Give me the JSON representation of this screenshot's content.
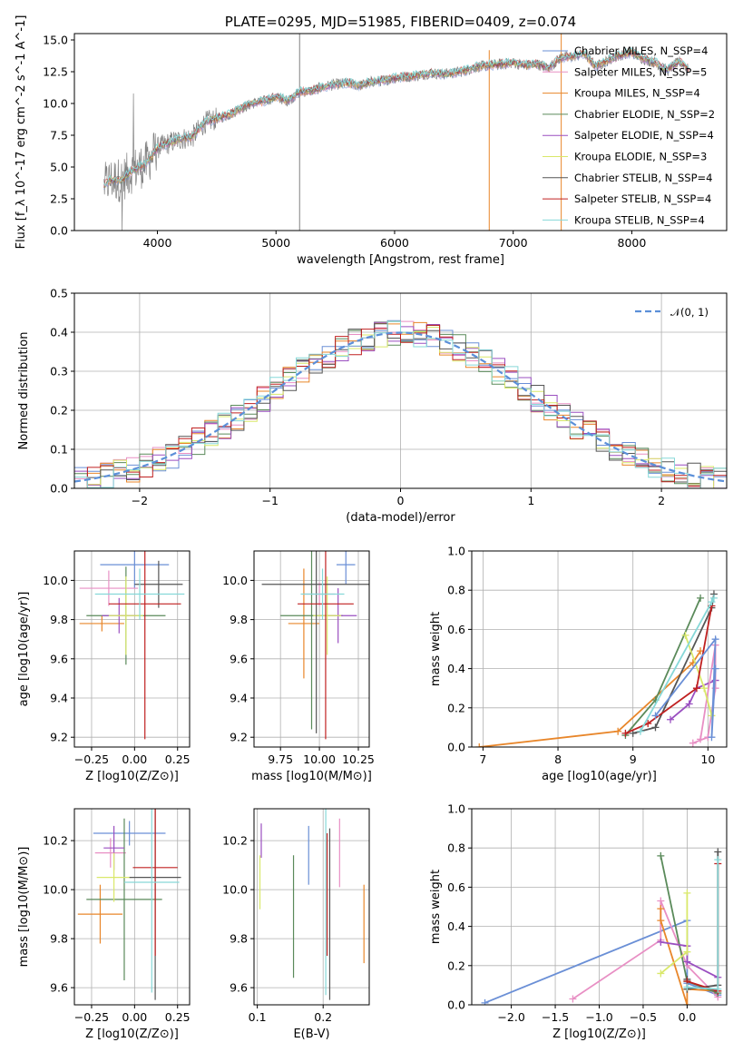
{
  "colors": {
    "chabrier_miles": "#6a8fd6",
    "salpeter_miles": "#e88fc4",
    "kroupa_miles": "#e8862a",
    "chabrier_elodie": "#5a8a5a",
    "salpeter_elodie": "#9a4fc0",
    "kroupa_elodie": "#d9e86a",
    "chabrier_stelib": "#555555",
    "salpeter_stelib": "#c02020",
    "kroupa_stelib": "#86d8d8",
    "normal_line": "#5b8fd8",
    "observed": "#808080"
  },
  "chart_data": [
    {
      "id": "spectrum",
      "type": "line",
      "title": "PLATE=0295, MJD=51985, FIBERID=0409, z=0.074",
      "xlabel": "wavelength [Angstrom, rest frame]",
      "ylabel": "Flux [f_λ 10^-17 erg cm^-2 s^-1 A^-1]",
      "xlim": [
        3300,
        8800
      ],
      "ylim": [
        0,
        15.5
      ],
      "xticks": [
        4000,
        5000,
        6000,
        7000,
        8000
      ],
      "yticks": [
        0.0,
        2.5,
        5.0,
        7.5,
        10.0,
        12.5,
        15.0
      ],
      "grid": false,
      "legend_position": "top-right",
      "continuum_x": [
        3550,
        3600,
        3700,
        3800,
        3900,
        4000,
        4100,
        4200,
        4300,
        4400,
        4500,
        4600,
        4700,
        4800,
        4900,
        5000,
        5100,
        5200,
        5300,
        5400,
        5500,
        5600,
        5700,
        5800,
        5900,
        6000,
        6100,
        6200,
        6300,
        6400,
        6500,
        6600,
        6700,
        6800,
        6900,
        7000,
        7100,
        7200,
        7300,
        7400,
        7500,
        7600,
        7700,
        7800,
        7900,
        8000,
        8100,
        8200,
        8300,
        8400,
        8500
      ],
      "continuum_y": [
        3.5,
        4.0,
        4.0,
        4.8,
        5.2,
        6.5,
        6.9,
        7.2,
        7.4,
        8.5,
        8.8,
        9.1,
        9.6,
        10.0,
        10.2,
        10.5,
        10.2,
        10.9,
        11.0,
        11.3,
        11.5,
        11.6,
        11.4,
        11.7,
        11.8,
        12.0,
        12.1,
        12.2,
        12.4,
        12.3,
        12.4,
        12.6,
        12.9,
        13.0,
        13.1,
        13.2,
        13.0,
        13.1,
        12.8,
        13.6,
        13.7,
        13.9,
        12.9,
        13.4,
        13.8,
        14.0,
        13.5,
        13.2,
        12.6,
        13.3,
        12.6
      ],
      "legend": [
        "Chabrier MILES, N_SSP=4",
        "Salpeter MILES, N_SSP=5",
        "Kroupa MILES, N_SSP=4",
        "Chabrier ELODIE, N_SSP=2",
        "Salpeter ELODIE, N_SSP=4",
        "Kroupa ELODIE, N_SSP=3",
        "Chabrier STELIB, N_SSP=4",
        "Salpeter STELIB, N_SSP=4",
        "Kroupa STELIB, N_SSP=4"
      ]
    },
    {
      "id": "residuals",
      "type": "line",
      "xlabel": "(data-model)/error",
      "ylabel": "Normed distribution",
      "xlim": [
        -2.5,
        2.5
      ],
      "ylim": [
        0,
        0.5
      ],
      "xticks": [
        -2,
        -1,
        0,
        1,
        2
      ],
      "yticks": [
        0.0,
        0.1,
        0.2,
        0.3,
        0.4,
        0.5
      ],
      "grid": true,
      "legend_position": "top-right",
      "legend": [
        "𝒩(0, 1)"
      ],
      "bin_width": 0.1
    },
    {
      "id": "age_vs_Z",
      "type": "scatter",
      "xlabel": "Z [log10(Z/Z⊙)]",
      "ylabel": "age  [log10(age/yr)]",
      "xlim": [
        -0.35,
        0.32
      ],
      "ylim": [
        9.15,
        10.15
      ],
      "xticks": [
        -0.25,
        0.0,
        0.25
      ],
      "yticks": [
        9.2,
        9.4,
        9.6,
        9.8,
        10.0
      ],
      "grid": true,
      "points": [
        {
          "series": "chabrier_miles",
          "x": 0.0,
          "y": 10.08,
          "xerr": 0.2,
          "yerr": 0.12
        },
        {
          "series": "salpeter_miles",
          "x": -0.15,
          "y": 9.96,
          "xerr": 0.17,
          "yerr": 0.09
        },
        {
          "series": "kroupa_miles",
          "x": -0.19,
          "y": 9.78,
          "xerr": 0.13,
          "yerr": 0.04
        },
        {
          "series": "chabrier_elodie",
          "x": -0.05,
          "y": 9.82,
          "xerr": 0.23,
          "yerr": 0.25
        },
        {
          "series": "salpeter_elodie",
          "x": -0.09,
          "y": 9.82,
          "xerr": 0.1,
          "yerr": 0.09
        },
        {
          "series": "kroupa_elodie",
          "x": -0.05,
          "y": 9.82,
          "xerr": 0.1,
          "yerr": 0.2
        },
        {
          "series": "chabrier_stelib",
          "x": 0.14,
          "y": 9.98,
          "xerr": 0.14,
          "yerr": 0.12
        },
        {
          "series": "salpeter_stelib",
          "x": 0.06,
          "y": 9.88,
          "xerr": 0.21,
          "yerr": 0.69
        },
        {
          "series": "kroupa_stelib",
          "x": 0.03,
          "y": 9.93,
          "xerr": 0.26,
          "yerr": 0.13
        }
      ]
    },
    {
      "id": "age_vs_mass",
      "type": "scatter",
      "xlabel": "mass [log10(M/M⊙)]",
      "ylabel": "",
      "xlim": [
        9.58,
        10.32
      ],
      "ylim": [
        9.15,
        10.15
      ],
      "xticks": [
        9.75,
        10.0,
        10.25
      ],
      "yticks": [
        9.2,
        9.4,
        9.6,
        9.8,
        10.0
      ],
      "grid": true,
      "points": [
        {
          "series": "chabrier_miles",
          "x": 10.17,
          "y": 10.08,
          "xerr": 0.06,
          "yerr": 0.1
        },
        {
          "series": "salpeter_miles",
          "x": 10.0,
          "y": 9.93,
          "xerr": 0.1,
          "yerr": 0.06
        },
        {
          "series": "kroupa_miles",
          "x": 9.9,
          "y": 9.78,
          "xerr": 0.1,
          "yerr": 0.28
        },
        {
          "series": "chabrier_elodie",
          "x": 9.95,
          "y": 9.82,
          "xerr": 0.2,
          "yerr": 0.58
        },
        {
          "series": "salpeter_elodie",
          "x": 10.12,
          "y": 9.82,
          "xerr": 0.12,
          "yerr": 0.14
        },
        {
          "series": "kroupa_elodie",
          "x": 10.05,
          "y": 9.82,
          "xerr": 0.09,
          "yerr": 0.2
        },
        {
          "series": "chabrier_stelib",
          "x": 9.98,
          "y": 9.98,
          "xerr": 0.35,
          "yerr": 0.76
        },
        {
          "series": "salpeter_stelib",
          "x": 10.04,
          "y": 9.88,
          "xerr": 0.18,
          "yerr": 0.69
        },
        {
          "series": "kroupa_stelib",
          "x": 10.02,
          "y": 9.93,
          "xerr": 0.14,
          "yerr": 0.13
        }
      ]
    },
    {
      "id": "weight_vs_age",
      "type": "line",
      "xlabel": "age  [log10(age/yr)]",
      "ylabel": "mass weight",
      "xlim": [
        6.85,
        10.25
      ],
      "ylim": [
        0,
        1
      ],
      "xticks": [
        7,
        8,
        9,
        10
      ],
      "yticks": [
        0.0,
        0.2,
        0.4,
        0.6,
        0.8,
        1.0
      ],
      "grid": true,
      "series": [
        {
          "key": "kroupa_miles",
          "x": [
            6.95,
            8.8,
            9.8,
            9.9
          ],
          "y": [
            0.0,
            0.08,
            0.43,
            0.49
          ]
        },
        {
          "key": "chabrier_elodie",
          "x": [
            8.9,
            9.3,
            9.9
          ],
          "y": [
            0.06,
            0.24,
            0.76
          ]
        },
        {
          "key": "chabrier_stelib",
          "x": [
            9.0,
            9.3,
            10.05,
            10.08
          ],
          "y": [
            0.07,
            0.1,
            0.71,
            0.78
          ]
        },
        {
          "key": "salpeter_elodie",
          "x": [
            9.5,
            9.75,
            9.85,
            10.1
          ],
          "y": [
            0.14,
            0.22,
            0.3,
            0.34
          ]
        },
        {
          "key": "salpeter_miles",
          "x": [
            9.8,
            10.0,
            10.1,
            10.1,
            9.9
          ],
          "y": [
            0.02,
            0.05,
            0.3,
            0.52,
            0.04
          ]
        },
        {
          "key": "kroupa_elodie",
          "x": [
            9.7,
            9.95,
            10.05
          ],
          "y": [
            0.57,
            0.3,
            0.16
          ]
        },
        {
          "key": "salpeter_stelib",
          "x": [
            8.9,
            9.2,
            9.85,
            10.05
          ],
          "y": [
            0.07,
            0.12,
            0.3,
            0.72
          ]
        },
        {
          "key": "chabrier_miles",
          "x": [
            9.3,
            10.1,
            10.05,
            10.1
          ],
          "y": [
            0.16,
            0.55,
            0.05,
            0.4
          ]
        },
        {
          "key": "kroupa_stelib",
          "x": [
            9.1,
            10.05,
            10.08
          ],
          "y": [
            0.08,
            0.74,
            0.76
          ]
        }
      ]
    },
    {
      "id": "mass_vs_Z",
      "type": "scatter",
      "xlabel": "Z [log10(Z/Z⊙)]",
      "ylabel": "mass [log10(M/M⊙)]",
      "xlim": [
        -0.35,
        0.32
      ],
      "ylim": [
        9.53,
        10.33
      ],
      "xticks": [
        -0.25,
        0.0,
        0.25
      ],
      "yticks": [
        9.6,
        9.8,
        10.0,
        10.2
      ],
      "grid": true,
      "points": [
        {
          "series": "chabrier_miles",
          "x": -0.03,
          "y": 10.23,
          "xerr": 0.21,
          "yerr": 0.05
        },
        {
          "series": "salpeter_miles",
          "x": -0.14,
          "y": 10.15,
          "xerr": 0.09,
          "yerr": 0.06
        },
        {
          "series": "kroupa_miles",
          "x": -0.2,
          "y": 9.9,
          "xerr": 0.13,
          "yerr": 0.12
        },
        {
          "series": "chabrier_elodie",
          "x": -0.06,
          "y": 9.96,
          "xerr": 0.22,
          "yerr": 0.33
        },
        {
          "series": "salpeter_elodie",
          "x": -0.12,
          "y": 10.17,
          "xerr": 0.06,
          "yerr": 0.09
        },
        {
          "series": "kroupa_elodie",
          "x": -0.12,
          "y": 10.05,
          "xerr": 0.1,
          "yerr": 0.1
        },
        {
          "series": "chabrier_stelib",
          "x": 0.12,
          "y": 10.05,
          "xerr": 0.15,
          "yerr": 0.5
        },
        {
          "series": "salpeter_stelib",
          "x": 0.12,
          "y": 10.09,
          "xerr": 0.13,
          "yerr": 0.36
        },
        {
          "series": "kroupa_stelib",
          "x": 0.1,
          "y": 10.03,
          "xerr": 0.16,
          "yerr": 0.45
        }
      ]
    },
    {
      "id": "mass_vs_EBV",
      "type": "scatter",
      "xlabel": "E(B-V)",
      "ylabel": "",
      "xlim": [
        0.095,
        0.27
      ],
      "ylim": [
        9.53,
        10.33
      ],
      "xticks": [
        0.1,
        0.2
      ],
      "yticks": [
        9.6,
        9.8,
        10.0,
        10.2
      ],
      "grid": true,
      "points": [
        {
          "series": "chabrier_miles",
          "x": 0.178,
          "y": 10.14,
          "xerr": 0,
          "yerr": 0.12
        },
        {
          "series": "salpeter_miles",
          "x": 0.225,
          "y": 10.15,
          "xerr": 0,
          "yerr": 0.14
        },
        {
          "series": "kroupa_miles",
          "x": 0.262,
          "y": 9.86,
          "xerr": 0,
          "yerr": 0.16
        },
        {
          "series": "chabrier_elodie",
          "x": 0.155,
          "y": 9.89,
          "xerr": 0,
          "yerr": 0.25
        },
        {
          "series": "salpeter_elodie",
          "x": 0.106,
          "y": 10.2,
          "xerr": 0,
          "yerr": 0.07
        },
        {
          "series": "kroupa_elodie",
          "x": 0.104,
          "y": 10.03,
          "xerr": 0,
          "yerr": 0.11
        },
        {
          "series": "chabrier_stelib",
          "x": 0.21,
          "y": 9.9,
          "xerr": 0,
          "yerr": 0.35
        },
        {
          "series": "salpeter_stelib",
          "x": 0.206,
          "y": 9.98,
          "xerr": 0,
          "yerr": 0.25
        },
        {
          "series": "kroupa_stelib",
          "x": 0.204,
          "y": 9.95,
          "xerr": 0,
          "yerr": 0.38
        }
      ]
    },
    {
      "id": "weight_vs_Z",
      "type": "line",
      "xlabel": "Z [log10(Z/Z⊙)]",
      "ylabel": "mass weight",
      "xlim": [
        -2.45,
        0.45
      ],
      "ylim": [
        0,
        1
      ],
      "xticks": [
        -2.0,
        -1.5,
        -1.0,
        -0.5,
        0.0
      ],
      "yticks": [
        0.0,
        0.2,
        0.4,
        0.6,
        0.8,
        1.0
      ],
      "grid": true,
      "series": [
        {
          "key": "chabrier_miles",
          "x": [
            -2.3,
            0.0,
            0.0,
            0.35
          ],
          "y": [
            0.01,
            0.43,
            0.11,
            0.05
          ]
        },
        {
          "key": "salpeter_miles",
          "x": [
            -1.3,
            -0.3,
            -0.3,
            0.0,
            0.35
          ],
          "y": [
            0.03,
            0.33,
            0.53,
            0.2,
            0.04
          ]
        },
        {
          "key": "kroupa_miles",
          "x": [
            -0.3,
            -0.3,
            0.0,
            0.0,
            0.35
          ],
          "y": [
            0.49,
            0.43,
            0.0,
            0.08,
            0.07
          ]
        },
        {
          "key": "chabrier_elodie",
          "x": [
            -0.3,
            0.0,
            0.35
          ],
          "y": [
            0.76,
            0.12,
            0.06
          ]
        },
        {
          "key": "salpeter_elodie",
          "x": [
            -0.3,
            0.0,
            0.0,
            0.35
          ],
          "y": [
            0.32,
            0.3,
            0.22,
            0.14
          ]
        },
        {
          "key": "kroupa_elodie",
          "x": [
            -0.3,
            0.0,
            0.0
          ],
          "y": [
            0.16,
            0.27,
            0.57
          ]
        },
        {
          "key": "chabrier_stelib",
          "x": [
            0.35,
            0.35,
            0.0,
            0.0
          ],
          "y": [
            0.78,
            0.1,
            0.08,
            0.13
          ]
        },
        {
          "key": "salpeter_stelib",
          "x": [
            0.0,
            0.35,
            0.35
          ],
          "y": [
            0.12,
            0.07,
            0.72
          ]
        },
        {
          "key": "kroupa_stelib",
          "x": [
            0.35,
            0.35,
            0.0
          ],
          "y": [
            0.74,
            0.08,
            0.09
          ]
        }
      ]
    }
  ]
}
